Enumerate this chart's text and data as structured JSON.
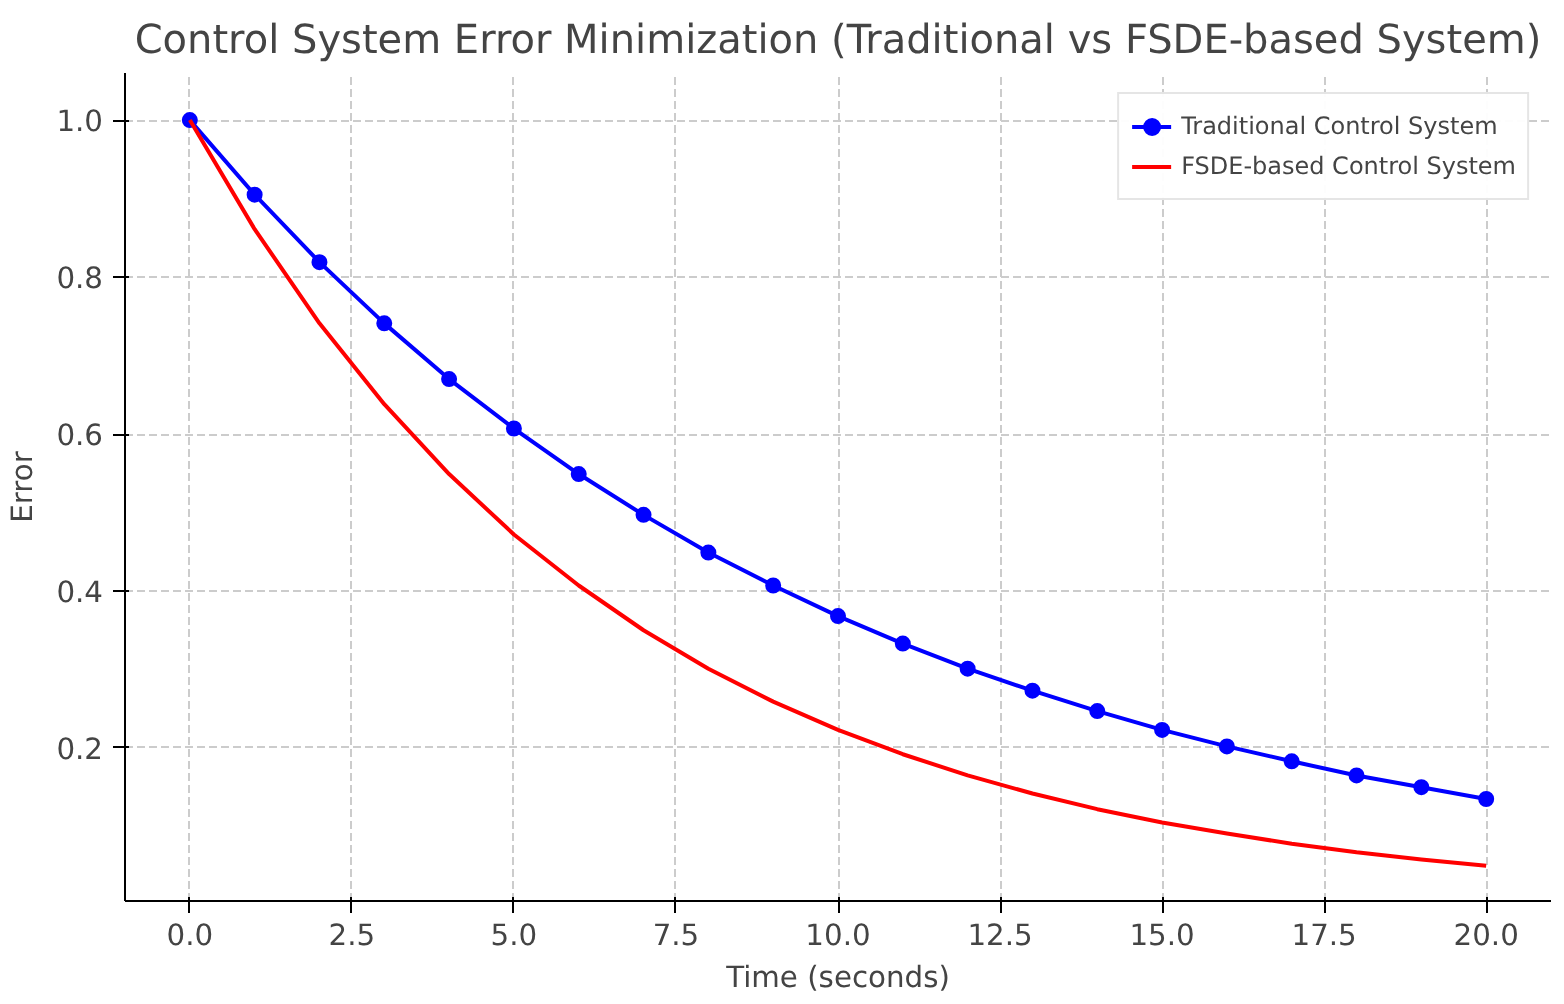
{
  "chart_data": {
    "type": "line",
    "title": "Control System Error Minimization (Traditional vs FSDE-based System)",
    "xlabel": "Time (seconds)",
    "ylabel": "Error",
    "x": [
      0,
      1,
      2,
      3,
      4,
      5,
      6,
      7,
      8,
      9,
      10,
      11,
      12,
      13,
      14,
      15,
      16,
      17,
      18,
      19,
      20
    ],
    "series": [
      {
        "name": "Traditional Control System",
        "color": "#0000ff",
        "marker": "circle",
        "values": [
          1.0,
          0.905,
          0.819,
          0.741,
          0.67,
          0.607,
          0.549,
          0.497,
          0.449,
          0.407,
          0.368,
          0.333,
          0.301,
          0.273,
          0.247,
          0.223,
          0.202,
          0.183,
          0.165,
          0.15,
          0.135
        ]
      },
      {
        "name": "FSDE-based Control System",
        "color": "#ff0000",
        "marker": "none",
        "values": [
          1.0,
          0.861,
          0.741,
          0.638,
          0.549,
          0.472,
          0.407,
          0.35,
          0.301,
          0.259,
          0.223,
          0.192,
          0.165,
          0.142,
          0.122,
          0.105,
          0.091,
          0.078,
          0.067,
          0.058,
          0.05
        ]
      }
    ],
    "xlim": [
      -1,
      21
    ],
    "ylim": [
      0.005,
      1.06
    ],
    "xticks": [
      {
        "value": 0,
        "label": "0.0"
      },
      2.5,
      {
        "value": 5,
        "label": "5.0"
      },
      7.5,
      {
        "value": 10,
        "label": "10.0"
      },
      12.5,
      {
        "value": 15,
        "label": "15.0"
      },
      17.5,
      {
        "value": 20,
        "label": "20.0"
      }
    ],
    "yticks": [
      0.2,
      0.4,
      0.6,
      0.8,
      {
        "value": 1,
        "label": "1.0"
      }
    ],
    "grid": true,
    "legend": "top right",
    "line_style": "solid"
  }
}
